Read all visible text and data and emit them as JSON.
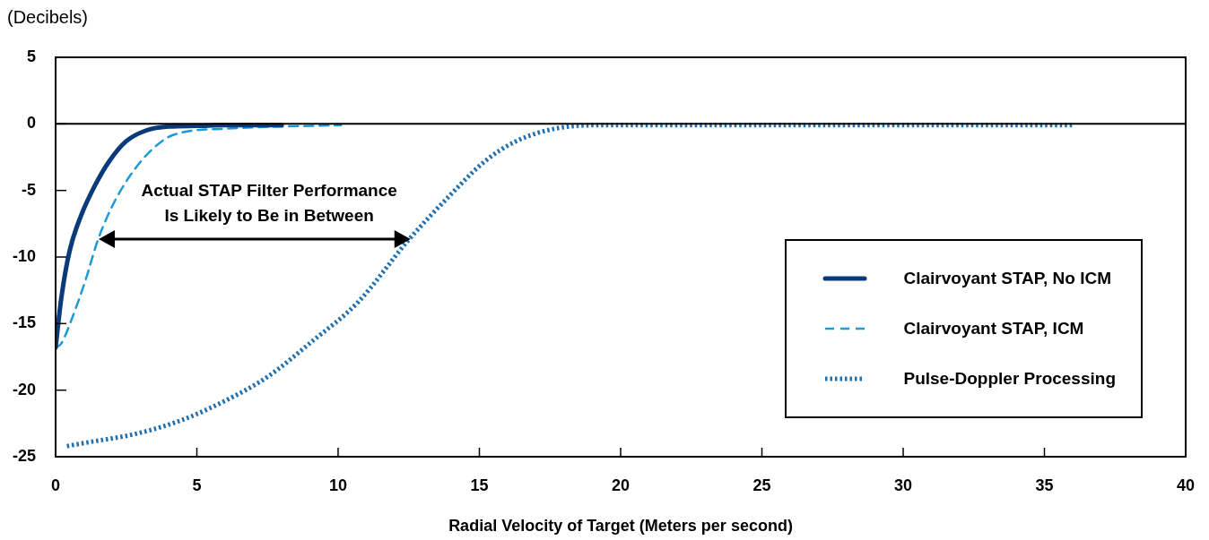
{
  "chart_data": {
    "type": "line",
    "ylabel": "(Decibels)",
    "xlabel": "Radial Velocity of Target (Meters per second)",
    "xlim": [
      0,
      40
    ],
    "xticks": [
      0,
      5,
      10,
      15,
      20,
      25,
      30,
      35,
      40
    ],
    "ylim": [
      -25,
      5
    ],
    "yticks": [
      -25,
      -20,
      -15,
      -10,
      -5,
      0,
      5
    ],
    "grid": false,
    "legend": "bottom right",
    "marker": "none",
    "ref_lines": [
      {
        "axis": "y",
        "value": 0,
        "color": "#000000"
      }
    ],
    "annotations": [
      "Actual STAP Filter Performance\nIs Likely to Be in Between"
    ],
    "series": [
      {
        "name": "Clairvoyant STAP, No ICM",
        "color": "#0b3a7a",
        "line_style": "solid",
        "x": [
          0,
          0.2,
          0.5,
          0.9,
          1.4,
          1.9,
          2.5,
          3.2,
          4,
          5,
          6,
          8
        ],
        "values": [
          -16.8,
          -13.1,
          -9.5,
          -6.9,
          -4.6,
          -2.8,
          -1.3,
          -0.5,
          -0.2,
          -0.15,
          -0.1,
          -0.1
        ]
      },
      {
        "name": "Clairvoyant STAP, ICM",
        "color": "#1a9ad6",
        "line_style": "dashed",
        "x": [
          0,
          0.2,
          0.6,
          1.05,
          1.5,
          2,
          2.6,
          3.4,
          4.2,
          6.1,
          8,
          10.1
        ],
        "values": [
          -16.8,
          -16.5,
          -14.5,
          -11.8,
          -8.7,
          -6.2,
          -4,
          -1.95,
          -0.8,
          -0.35,
          -0.2,
          -0.1
        ]
      },
      {
        "name": "Pulse-Doppler Processing",
        "color": "#1e6fb0",
        "line_style": "dotted",
        "x": [
          0.4,
          1.2,
          2.8,
          4.4,
          6,
          7.5,
          9.1,
          10.7,
          12.5,
          13.9,
          15.2,
          16.3,
          17.7,
          19.2,
          25,
          30,
          36
        ],
        "values": [
          -24.2,
          -23.9,
          -23.3,
          -22.3,
          -20.8,
          -19,
          -16.3,
          -13.4,
          -8.7,
          -5.5,
          -2.8,
          -1.3,
          -0.35,
          -0.1,
          -0.1,
          -0.1,
          -0.1
        ]
      }
    ]
  }
}
